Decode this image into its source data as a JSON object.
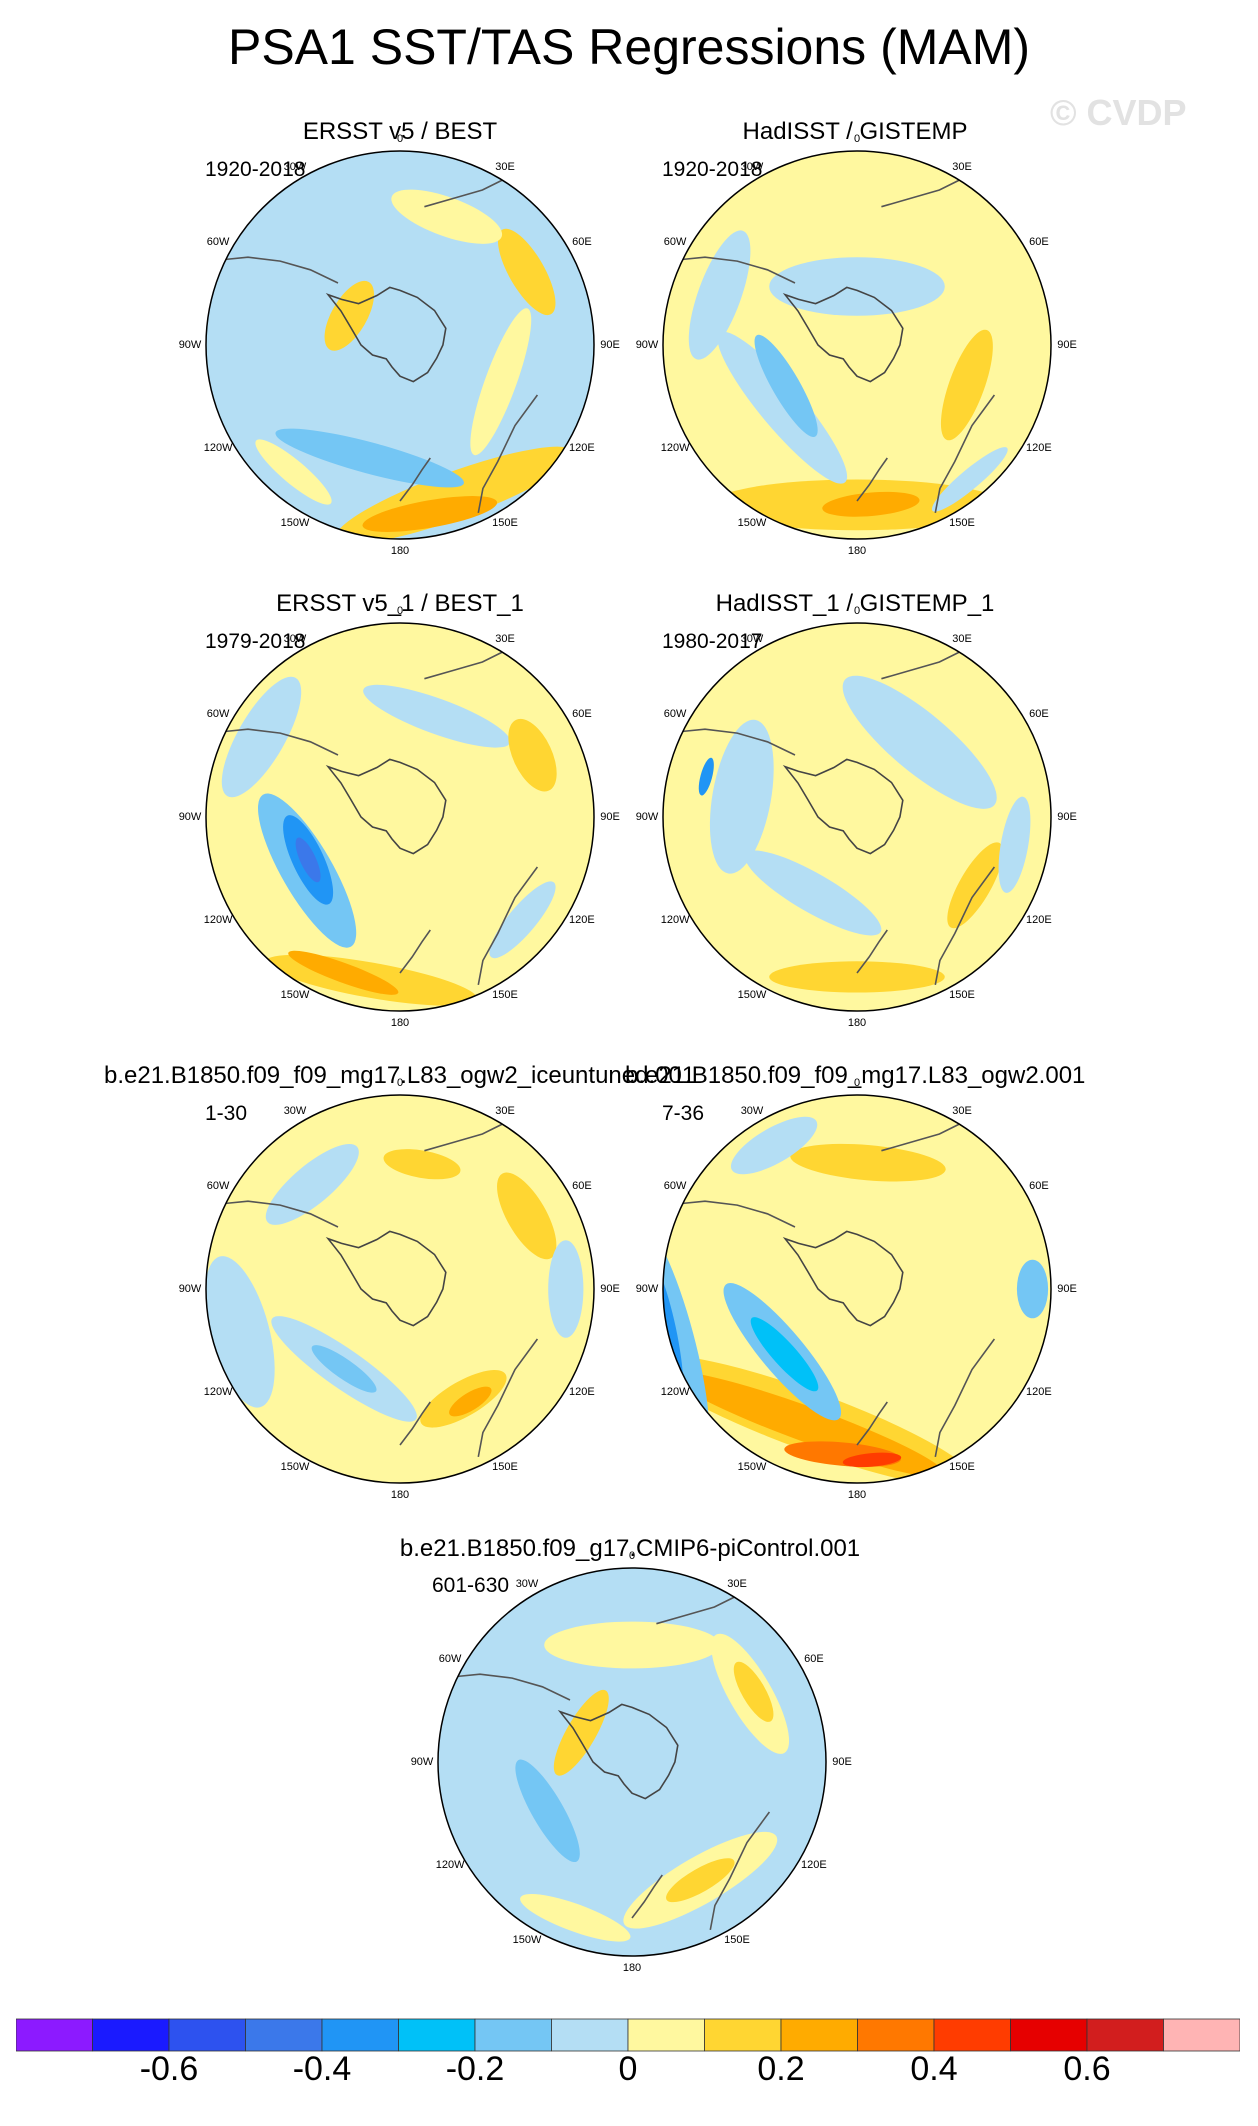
{
  "title": "PSA1 SST/TAS Regressions (MAM)",
  "watermark": "© CVDP",
  "lon_labels": [
    "0",
    "30E",
    "60E",
    "90E",
    "120E",
    "150E",
    "180",
    "150W",
    "120W",
    "90W",
    "60W",
    "30W"
  ],
  "panels": [
    {
      "title": "ERSST v5 / BEST",
      "period": "1920-2018"
    },
    {
      "title": "HadISST / GISTEMP",
      "period": "1920-2018"
    },
    {
      "title": "ERSST v5_1 / BEST_1",
      "period": "1979-2018"
    },
    {
      "title": "HadISST_1 / GISTEMP_1",
      "period": "1980-2017"
    },
    {
      "title": "b.e21.B1850.f09_f09_mg17.L83_ogw2_iceuntuned.001",
      "period": "1-30"
    },
    {
      "title": "b.e21.B1850.f09_f09_mg17.L83_ogw2.001",
      "period": "7-36"
    },
    {
      "title": "b.e21.B1850.f09_g17.CMIP6-piControl.001",
      "period": "601-630"
    }
  ],
  "chart_data": {
    "type": "heatmap",
    "title": "PSA1 SST/TAS Regressions (MAM)",
    "projection": "south polar stereographic",
    "colorbar": {
      "colors": [
        "#8c1aff",
        "#1a1aff",
        "#2d52ef",
        "#3b78ea",
        "#2095f5",
        "#00c1f8",
        "#74c6f4",
        "#b4def4",
        "#fff89f",
        "#ffd632",
        "#ffab00",
        "#ff7800",
        "#ff3c00",
        "#e60000",
        "#d21e1e",
        "#ffb4b4"
      ],
      "tick_labels": [
        "-0.6",
        "-0.4",
        "-0.2",
        "0",
        "0.2",
        "0.4",
        "0.6"
      ],
      "tick_values": [
        -0.6,
        -0.4,
        -0.2,
        0,
        0.2,
        0.4,
        0.6
      ],
      "range": [
        -0.8,
        0.8
      ],
      "interval": 0.1
    },
    "panel_fields": [
      {
        "base": "#b4def4",
        "blobs": [
          {
            "lon": 160,
            "r": 0.82,
            "w": 1.3,
            "h": 0.24,
            "level": "#ffd632"
          },
          {
            "lon": 170,
            "r": 0.88,
            "w": 0.7,
            "h": 0.14,
            "level": "#ffab00"
          },
          {
            "lon": 220,
            "r": 0.85,
            "w": 0.5,
            "h": 0.12,
            "level": "#fff89f"
          },
          {
            "lon": 195,
            "r": 0.6,
            "w": 1.0,
            "h": 0.16,
            "level": "#74c6f4"
          },
          {
            "lon": 60,
            "r": 0.75,
            "w": 0.5,
            "h": 0.18,
            "level": "#ffd632"
          },
          {
            "lon": 20,
            "r": 0.7,
            "w": 0.6,
            "h": 0.2,
            "level": "#fff89f"
          },
          {
            "lon": 110,
            "r": 0.55,
            "w": 0.8,
            "h": 0.16,
            "level": "#fff89f"
          },
          {
            "lon": 300,
            "r": 0.3,
            "w": 0.4,
            "h": 0.18,
            "level": "#ffd632"
          }
        ]
      },
      {
        "base": "#fff89f",
        "blobs": [
          {
            "lon": 180,
            "r": 0.82,
            "w": 1.5,
            "h": 0.26,
            "level": "#ffd632"
          },
          {
            "lon": 175,
            "r": 0.82,
            "w": 0.5,
            "h": 0.12,
            "level": "#ffab00"
          },
          {
            "lon": 230,
            "r": 0.5,
            "w": 1.0,
            "h": 0.22,
            "level": "#b4def4"
          },
          {
            "lon": 240,
            "r": 0.42,
            "w": 0.6,
            "h": 0.14,
            "level": "#74c6f4"
          },
          {
            "lon": 0,
            "r": 0.3,
            "w": 0.9,
            "h": 0.3,
            "level": "#b4def4"
          },
          {
            "lon": 290,
            "r": 0.75,
            "w": 0.7,
            "h": 0.22,
            "level": "#b4def4"
          },
          {
            "lon": 110,
            "r": 0.6,
            "w": 0.6,
            "h": 0.18,
            "level": "#ffd632"
          },
          {
            "lon": 140,
            "r": 0.9,
            "w": 0.5,
            "h": 0.1,
            "level": "#b4def4"
          }
        ]
      },
      {
        "base": "#fff89f",
        "blobs": [
          {
            "lon": 240,
            "r": 0.55,
            "w": 0.9,
            "h": 0.26,
            "level": "#74c6f4"
          },
          {
            "lon": 245,
            "r": 0.52,
            "w": 0.5,
            "h": 0.16,
            "level": "#2095f5"
          },
          {
            "lon": 245,
            "r": 0.52,
            "w": 0.25,
            "h": 0.08,
            "level": "#3b78ea"
          },
          {
            "lon": 190,
            "r": 0.85,
            "w": 1.1,
            "h": 0.18,
            "level": "#ffd632"
          },
          {
            "lon": 200,
            "r": 0.85,
            "w": 0.6,
            "h": 0.1,
            "level": "#ffab00"
          },
          {
            "lon": 300,
            "r": 0.82,
            "w": 0.7,
            "h": 0.24,
            "level": "#b4def4"
          },
          {
            "lon": 20,
            "r": 0.55,
            "w": 0.8,
            "h": 0.18,
            "level": "#b4def4"
          },
          {
            "lon": 65,
            "r": 0.75,
            "w": 0.4,
            "h": 0.2,
            "level": "#ffd632"
          },
          {
            "lon": 130,
            "r": 0.82,
            "w": 0.5,
            "h": 0.14,
            "level": "#b4def4"
          }
        ]
      },
      {
        "base": "#fff89f",
        "blobs": [
          {
            "lon": 40,
            "r": 0.5,
            "w": 1.0,
            "h": 0.3,
            "level": "#b4def4"
          },
          {
            "lon": 280,
            "r": 0.6,
            "w": 0.8,
            "h": 0.3,
            "level": "#b4def4"
          },
          {
            "lon": 285,
            "r": 0.8,
            "w": 0.2,
            "h": 0.06,
            "level": "#2095f5"
          },
          {
            "lon": 210,
            "r": 0.45,
            "w": 0.8,
            "h": 0.2,
            "level": "#b4def4"
          },
          {
            "lon": 180,
            "r": 0.82,
            "w": 0.9,
            "h": 0.16,
            "level": "#ffd632"
          },
          {
            "lon": 120,
            "r": 0.7,
            "w": 0.5,
            "h": 0.16,
            "level": "#ffd632"
          },
          {
            "lon": 100,
            "r": 0.82,
            "w": 0.5,
            "h": 0.14,
            "level": "#b4def4"
          }
        ]
      },
      {
        "base": "#fff89f",
        "blobs": [
          {
            "lon": 215,
            "r": 0.5,
            "w": 0.9,
            "h": 0.2,
            "level": "#b4def4"
          },
          {
            "lon": 215,
            "r": 0.5,
            "w": 0.4,
            "h": 0.1,
            "level": "#74c6f4"
          },
          {
            "lon": 255,
            "r": 0.85,
            "w": 0.8,
            "h": 0.3,
            "level": "#b4def4"
          },
          {
            "lon": 150,
            "r": 0.65,
            "w": 0.5,
            "h": 0.18,
            "level": "#ffd632"
          },
          {
            "lon": 148,
            "r": 0.68,
            "w": 0.25,
            "h": 0.09,
            "level": "#ffab00"
          },
          {
            "lon": 60,
            "r": 0.75,
            "w": 0.5,
            "h": 0.2,
            "level": "#ffd632"
          },
          {
            "lon": 90,
            "r": 0.85,
            "w": 0.5,
            "h": 0.18,
            "level": "#b4def4"
          },
          {
            "lon": 320,
            "r": 0.7,
            "w": 0.6,
            "h": 0.2,
            "level": "#b4def4"
          },
          {
            "lon": 10,
            "r": 0.65,
            "w": 0.4,
            "h": 0.14,
            "level": "#ffd632"
          }
        ]
      },
      {
        "base": "#fff89f",
        "blobs": [
          {
            "lon": 200,
            "r": 0.72,
            "w": 1.8,
            "h": 0.3,
            "level": "#ffd632"
          },
          {
            "lon": 200,
            "r": 0.74,
            "w": 1.5,
            "h": 0.18,
            "level": "#ffab00"
          },
          {
            "lon": 185,
            "r": 0.85,
            "w": 0.6,
            "h": 0.12,
            "level": "#ff7800"
          },
          {
            "lon": 175,
            "r": 0.88,
            "w": 0.3,
            "h": 0.07,
            "level": "#ff3c00"
          },
          {
            "lon": 230,
            "r": 0.5,
            "w": 0.9,
            "h": 0.22,
            "level": "#74c6f4"
          },
          {
            "lon": 228,
            "r": 0.5,
            "w": 0.5,
            "h": 0.12,
            "level": "#00c1f8"
          },
          {
            "lon": 255,
            "r": 0.98,
            "w": 1.2,
            "h": 0.22,
            "level": "#74c6f4"
          },
          {
            "lon": 258,
            "r": 1.02,
            "w": 0.8,
            "h": 0.14,
            "level": "#2095f5"
          },
          {
            "lon": 5,
            "r": 0.65,
            "w": 0.8,
            "h": 0.18,
            "level": "#ffd632"
          },
          {
            "lon": 90,
            "r": 0.9,
            "w": 0.3,
            "h": 0.16,
            "level": "#74c6f4"
          },
          {
            "lon": 330,
            "r": 0.85,
            "w": 0.5,
            "h": 0.18,
            "level": "#b4def4"
          }
        ]
      },
      {
        "base": "#b4def4",
        "blobs": [
          {
            "lon": 150,
            "r": 0.7,
            "w": 0.9,
            "h": 0.24,
            "level": "#fff89f"
          },
          {
            "lon": 150,
            "r": 0.7,
            "w": 0.4,
            "h": 0.12,
            "level": "#ffd632"
          },
          {
            "lon": 60,
            "r": 0.7,
            "w": 0.7,
            "h": 0.22,
            "level": "#fff89f"
          },
          {
            "lon": 60,
            "r": 0.72,
            "w": 0.35,
            "h": 0.12,
            "level": "#ffd632"
          },
          {
            "lon": 240,
            "r": 0.5,
            "w": 0.6,
            "h": 0.16,
            "level": "#74c6f4"
          },
          {
            "lon": 0,
            "r": 0.6,
            "w": 0.9,
            "h": 0.24,
            "level": "#fff89f"
          },
          {
            "lon": 300,
            "r": 0.3,
            "w": 0.5,
            "h": 0.15,
            "level": "#ffd632"
          },
          {
            "lon": 200,
            "r": 0.85,
            "w": 0.6,
            "h": 0.14,
            "level": "#fff89f"
          }
        ]
      }
    ]
  }
}
